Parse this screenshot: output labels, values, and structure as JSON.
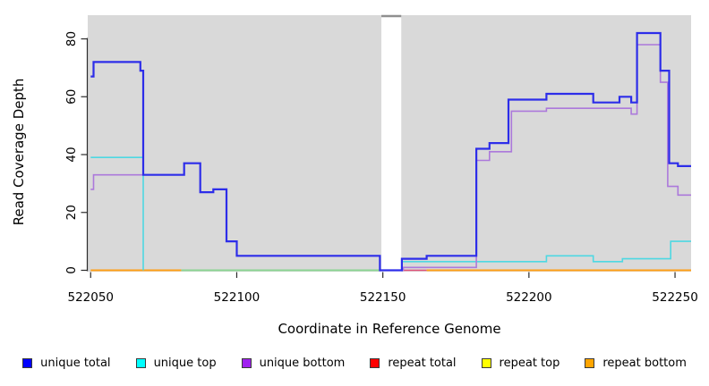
{
  "figure": {
    "xlabel": "Coordinate in Reference Genome",
    "ylabel": "Read Coverage Depth"
  },
  "legend": {
    "items": [
      {
        "label": "unique total",
        "color": "#0000FF"
      },
      {
        "label": "unique top",
        "color": "#00FFFF"
      },
      {
        "label": "unique bottom",
        "color": "#A020F0"
      },
      {
        "label": "repeat total",
        "color": "#FF0000"
      },
      {
        "label": "repeat top",
        "color": "#FFFF00"
      },
      {
        "label": "repeat bottom",
        "color": "#FFA500"
      }
    ]
  },
  "chart_data": {
    "type": "line",
    "subtype": "step",
    "title": "",
    "xlabel": "Coordinate in Reference Genome",
    "ylabel": "Read Coverage Depth",
    "xlim": [
      522049,
      522255.5
    ],
    "ylim": [
      0,
      88
    ],
    "xticks": [
      522050,
      522100,
      522150,
      522200,
      522250
    ],
    "yticks": [
      0,
      20,
      40,
      60,
      80
    ],
    "grid": false,
    "plot_bg": "#D9D9D9",
    "gap_region": {
      "x1": 522149.5,
      "x2": 522156.3,
      "color": "#FFFFFF",
      "cap_color": "#8F8F8F"
    },
    "legend_position": "bottom",
    "series": [
      {
        "name": "repeat top",
        "color": "#FFFF00",
        "render_color": "#8CD494",
        "width": 2,
        "note": "zero coverage; overlaps unique top baseline and appears green",
        "segments": [
          [
            [
              522081,
              0
            ],
            [
              522149,
              0
            ]
          ]
        ]
      },
      {
        "name": "repeat total",
        "color": "#FF0000",
        "render_color": "#DE5178",
        "width": 1.6,
        "segments": [
          [
            [
              522151.5,
              0
            ],
            [
              522165,
              0
            ]
          ]
        ]
      },
      {
        "name": "repeat bottom",
        "color": "#FFA500",
        "render_color": "#FFA017",
        "width": 2,
        "segments": [
          [
            [
              522050,
              0
            ],
            [
              522081,
              0
            ]
          ],
          [
            [
              522165,
              0
            ],
            [
              522255.5,
              0
            ]
          ]
        ]
      },
      {
        "name": "unique top",
        "color": "#00FFFF",
        "render_color": "#4ED8E2",
        "width": 1.6,
        "segments": [
          [
            [
              522050,
              39
            ],
            [
              522068,
              0
            ]
          ],
          [
            [
              522156.5,
              3
            ],
            [
              522206,
              5
            ],
            [
              522222,
              3
            ],
            [
              522232,
              4
            ],
            [
              522248.5,
              10
            ],
            [
              522255.5,
              10
            ]
          ]
        ]
      },
      {
        "name": "unique bottom",
        "color": "#A020F0",
        "render_color": "#AC79DB",
        "width": 1.6,
        "segments": [
          [
            [
              522050,
              28
            ],
            [
              522051,
              33
            ],
            [
              522068,
              33
            ],
            [
              522082,
              37
            ],
            [
              522087.5,
              27
            ],
            [
              522092,
              28
            ],
            [
              522096.5,
              10
            ],
            [
              522100,
              5
            ],
            [
              522149,
              0
            ],
            [
              522157,
              1
            ],
            [
              522182,
              38
            ],
            [
              522186.5,
              41
            ],
            [
              522194,
              55
            ],
            [
              522206,
              56
            ],
            [
              522235,
              54
            ],
            [
              522237,
              78
            ],
            [
              522245,
              65
            ],
            [
              522247.5,
              29
            ],
            [
              522251,
              26
            ],
            [
              522255.5,
              26
            ]
          ]
        ]
      },
      {
        "name": "unique total",
        "color": "#0000FF",
        "render_color": "#2D2DE9",
        "width": 2.2,
        "segments": [
          [
            [
              522050,
              67
            ],
            [
              522051,
              72
            ],
            [
              522067,
              69
            ],
            [
              522068,
              33
            ],
            [
              522082,
              37
            ],
            [
              522087.5,
              27
            ],
            [
              522092,
              28
            ],
            [
              522096.5,
              10
            ],
            [
              522100,
              5
            ],
            [
              522149,
              0
            ],
            [
              522156.5,
              4
            ],
            [
              522165,
              5
            ],
            [
              522182,
              42
            ],
            [
              522186.5,
              44
            ],
            [
              522193,
              59
            ],
            [
              522206,
              61
            ],
            [
              522222,
              58
            ],
            [
              522231,
              60
            ],
            [
              522235,
              58
            ],
            [
              522237,
              82
            ],
            [
              522245,
              69
            ],
            [
              522248,
              37
            ],
            [
              522251,
              36
            ],
            [
              522255.5,
              36
            ]
          ]
        ]
      }
    ]
  }
}
